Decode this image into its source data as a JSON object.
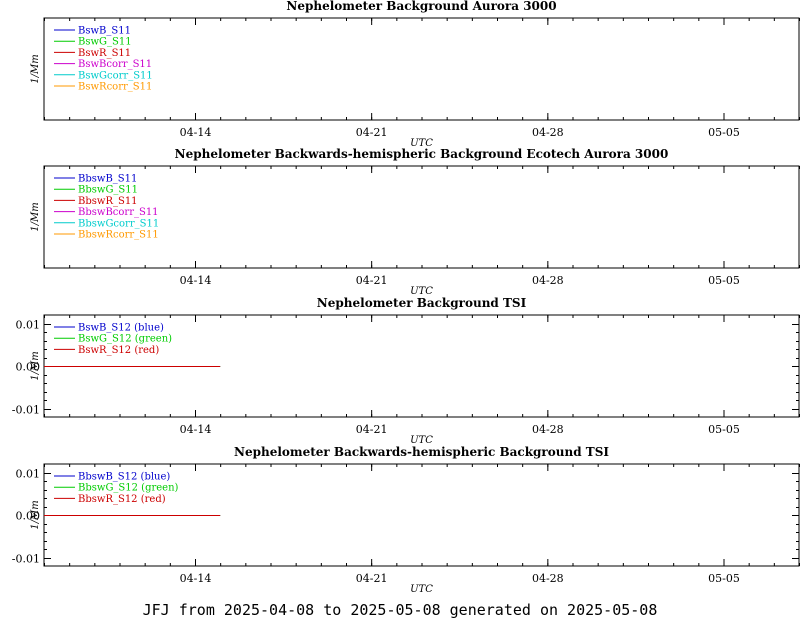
{
  "footer": "JFJ from 2025-04-08 to 2025-05-08 generated on 2025-05-08",
  "chart_data": [
    {
      "type": "line",
      "title": "Nephelometer Background Aurora 3000",
      "xlabel": "UTC",
      "ylabel": "1/Mm",
      "x_range": [
        "2025-04-08",
        "2025-05-08"
      ],
      "x_ticks": [
        "04-14",
        "04-21",
        "04-28",
        "05-05"
      ],
      "y_ticks": [],
      "legend_placement": "top-left",
      "series": [
        {
          "name": "BswB_S11",
          "color": "#0000cc",
          "x": [],
          "y": []
        },
        {
          "name": "BswG_S11",
          "color": "#00cc00",
          "x": [],
          "y": []
        },
        {
          "name": "BswR_S11",
          "color": "#cc0000",
          "x": [],
          "y": []
        },
        {
          "name": "BswBcorr_S11",
          "color": "#cc00cc",
          "x": [],
          "y": []
        },
        {
          "name": "BswGcorr_S11",
          "color": "#00cccc",
          "x": [],
          "y": []
        },
        {
          "name": "BswRcorr_S11",
          "color": "#ff9900",
          "x": [],
          "y": []
        }
      ]
    },
    {
      "type": "line",
      "title": "Nephelometer Backwards-hemispheric Background Ecotech Aurora 3000",
      "xlabel": "UTC",
      "ylabel": "1/Mm",
      "x_range": [
        "2025-04-08",
        "2025-05-08"
      ],
      "x_ticks": [
        "04-14",
        "04-21",
        "04-28",
        "05-05"
      ],
      "y_ticks": [],
      "legend_placement": "top-left",
      "series": [
        {
          "name": "BbswB_S11",
          "color": "#0000cc",
          "x": [],
          "y": []
        },
        {
          "name": "BbswG_S11",
          "color": "#00cc00",
          "x": [],
          "y": []
        },
        {
          "name": "BbswR_S11",
          "color": "#cc0000",
          "x": [],
          "y": []
        },
        {
          "name": "BbswBcorr_S11",
          "color": "#cc00cc",
          "x": [],
          "y": []
        },
        {
          "name": "BbswGcorr_S11",
          "color": "#00cccc",
          "x": [],
          "y": []
        },
        {
          "name": "BbswRcorr_S11",
          "color": "#ff9900",
          "x": [],
          "y": []
        }
      ]
    },
    {
      "type": "line",
      "title": "Nephelometer Background TSI",
      "xlabel": "UTC",
      "ylabel": "1/Mm",
      "x_range": [
        "2025-04-08",
        "2025-05-08"
      ],
      "x_ticks": [
        "04-14",
        "04-21",
        "04-28",
        "05-05"
      ],
      "ylim": [
        -0.012,
        0.012
      ],
      "y_ticks": [
        "0.01",
        "0.00",
        "-0.01"
      ],
      "legend_placement": "top-left",
      "series": [
        {
          "name": "BswB_S12 (blue)",
          "color": "#0000cc",
          "x": [
            "2025-04-08",
            "2025-04-15"
          ],
          "y": [
            0,
            0
          ]
        },
        {
          "name": "BswG_S12 (green)",
          "color": "#00cc00",
          "x": [
            "2025-04-08",
            "2025-04-15"
          ],
          "y": [
            0,
            0
          ]
        },
        {
          "name": "BswR_S12 (red)",
          "color": "#cc0000",
          "x": [
            "2025-04-08",
            "2025-04-15"
          ],
          "y": [
            0,
            0
          ]
        }
      ]
    },
    {
      "type": "line",
      "title": "Nephelometer Backwards-hemispheric Background TSI",
      "xlabel": "UTC",
      "ylabel": "1/Mm",
      "x_range": [
        "2025-04-08",
        "2025-05-08"
      ],
      "x_ticks": [
        "04-14",
        "04-21",
        "04-28",
        "05-05"
      ],
      "ylim": [
        -0.012,
        0.012
      ],
      "y_ticks": [
        "0.01",
        "0.00",
        "-0.01"
      ],
      "legend_placement": "top-left",
      "series": [
        {
          "name": "BbswB_S12 (blue)",
          "color": "#0000cc",
          "x": [
            "2025-04-08",
            "2025-04-15"
          ],
          "y": [
            0,
            0
          ]
        },
        {
          "name": "BbswG_S12 (green)",
          "color": "#00cc00",
          "x": [
            "2025-04-08",
            "2025-04-15"
          ],
          "y": [
            0,
            0
          ]
        },
        {
          "name": "BbswR_S12 (red)",
          "color": "#cc0000",
          "x": [
            "2025-04-08",
            "2025-04-15"
          ],
          "y": [
            0,
            0
          ]
        }
      ]
    }
  ]
}
